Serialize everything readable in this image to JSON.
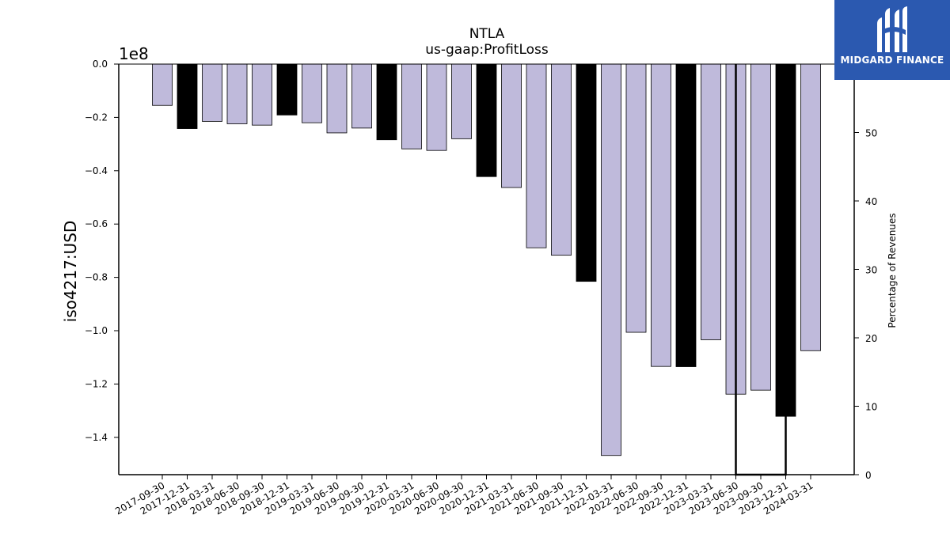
{
  "chart_data": {
    "type": "bar",
    "title": "NTLA",
    "subtitle": "us-gaap:ProfitLoss",
    "ylabel": "iso4217:USD",
    "y2label": "Percentage of Revenues",
    "y_offset_label": "1e8",
    "ylim": [
      -154000000,
      0
    ],
    "y2lim": [
      0,
      60
    ],
    "yticks": [
      "0.0",
      "−0.2",
      "−0.4",
      "−0.6",
      "−0.8",
      "−1.0",
      "−1.2",
      "−1.4"
    ],
    "ytick_values": [
      0,
      -20000000,
      -40000000,
      -60000000,
      -80000000,
      -100000000,
      -120000000,
      -140000000
    ],
    "y2ticks": [
      "0",
      "10",
      "20",
      "30",
      "40",
      "50"
    ],
    "y2tick_values": [
      0,
      10,
      20,
      30,
      40,
      50
    ],
    "categories": [
      "2017-09-30",
      "2017-12-31",
      "2018-03-31",
      "2018-06-30",
      "2018-09-30",
      "2018-12-31",
      "2019-03-31",
      "2019-06-30",
      "2019-09-30",
      "2019-12-31",
      "2020-03-31",
      "2020-06-30",
      "2020-09-30",
      "2020-12-31",
      "2021-03-31",
      "2021-06-30",
      "2021-09-30",
      "2021-12-31",
      "2022-03-31",
      "2022-06-30",
      "2022-09-30",
      "2022-12-31",
      "2023-03-31",
      "2023-06-30",
      "2023-09-30",
      "2023-12-31",
      "2024-03-31"
    ],
    "series": [
      {
        "values": [
          -15500000,
          -24200000,
          -21500000,
          -22400000,
          -22900000,
          -19100000,
          -22000000,
          -25800000,
          -24000000,
          -28400000,
          -31800000,
          -32400000,
          -28000000,
          -42200000,
          -46300000,
          -68900000,
          -71700000,
          -81500000,
          -146800000,
          -100600000,
          -113400000,
          -113500000,
          -103400000,
          -123800000,
          -122300000,
          -132100000,
          -107500000
        ],
        "period": [
          "Q",
          "FY",
          "Q",
          "Q",
          "Q",
          "FY",
          "Q",
          "Q",
          "Q",
          "FY",
          "Q",
          "Q",
          "Q",
          "FY",
          "Q",
          "Q",
          "Q",
          "FY",
          "Q",
          "Q",
          "Q",
          "FY",
          "Q",
          "Q",
          "Q",
          "FY",
          "Q"
        ]
      }
    ],
    "percentage_line": {
      "points": [
        {
          "x": "2023-06-30",
          "y": 60
        },
        {
          "x": "2023-06-30",
          "y": 0
        },
        {
          "x": "2023-12-31",
          "y": 0
        },
        {
          "x": "2023-12-31",
          "y": 60
        }
      ]
    },
    "colors": {
      "quarter": "#bfbadb",
      "annual": "#000000",
      "edge": "#000000",
      "line": "#000000"
    },
    "grid": false,
    "legend": "none"
  },
  "logo": {
    "text": "MIDGARD FINANCE",
    "icon": "midgard-logo-icon",
    "color": "#2b59b0"
  }
}
